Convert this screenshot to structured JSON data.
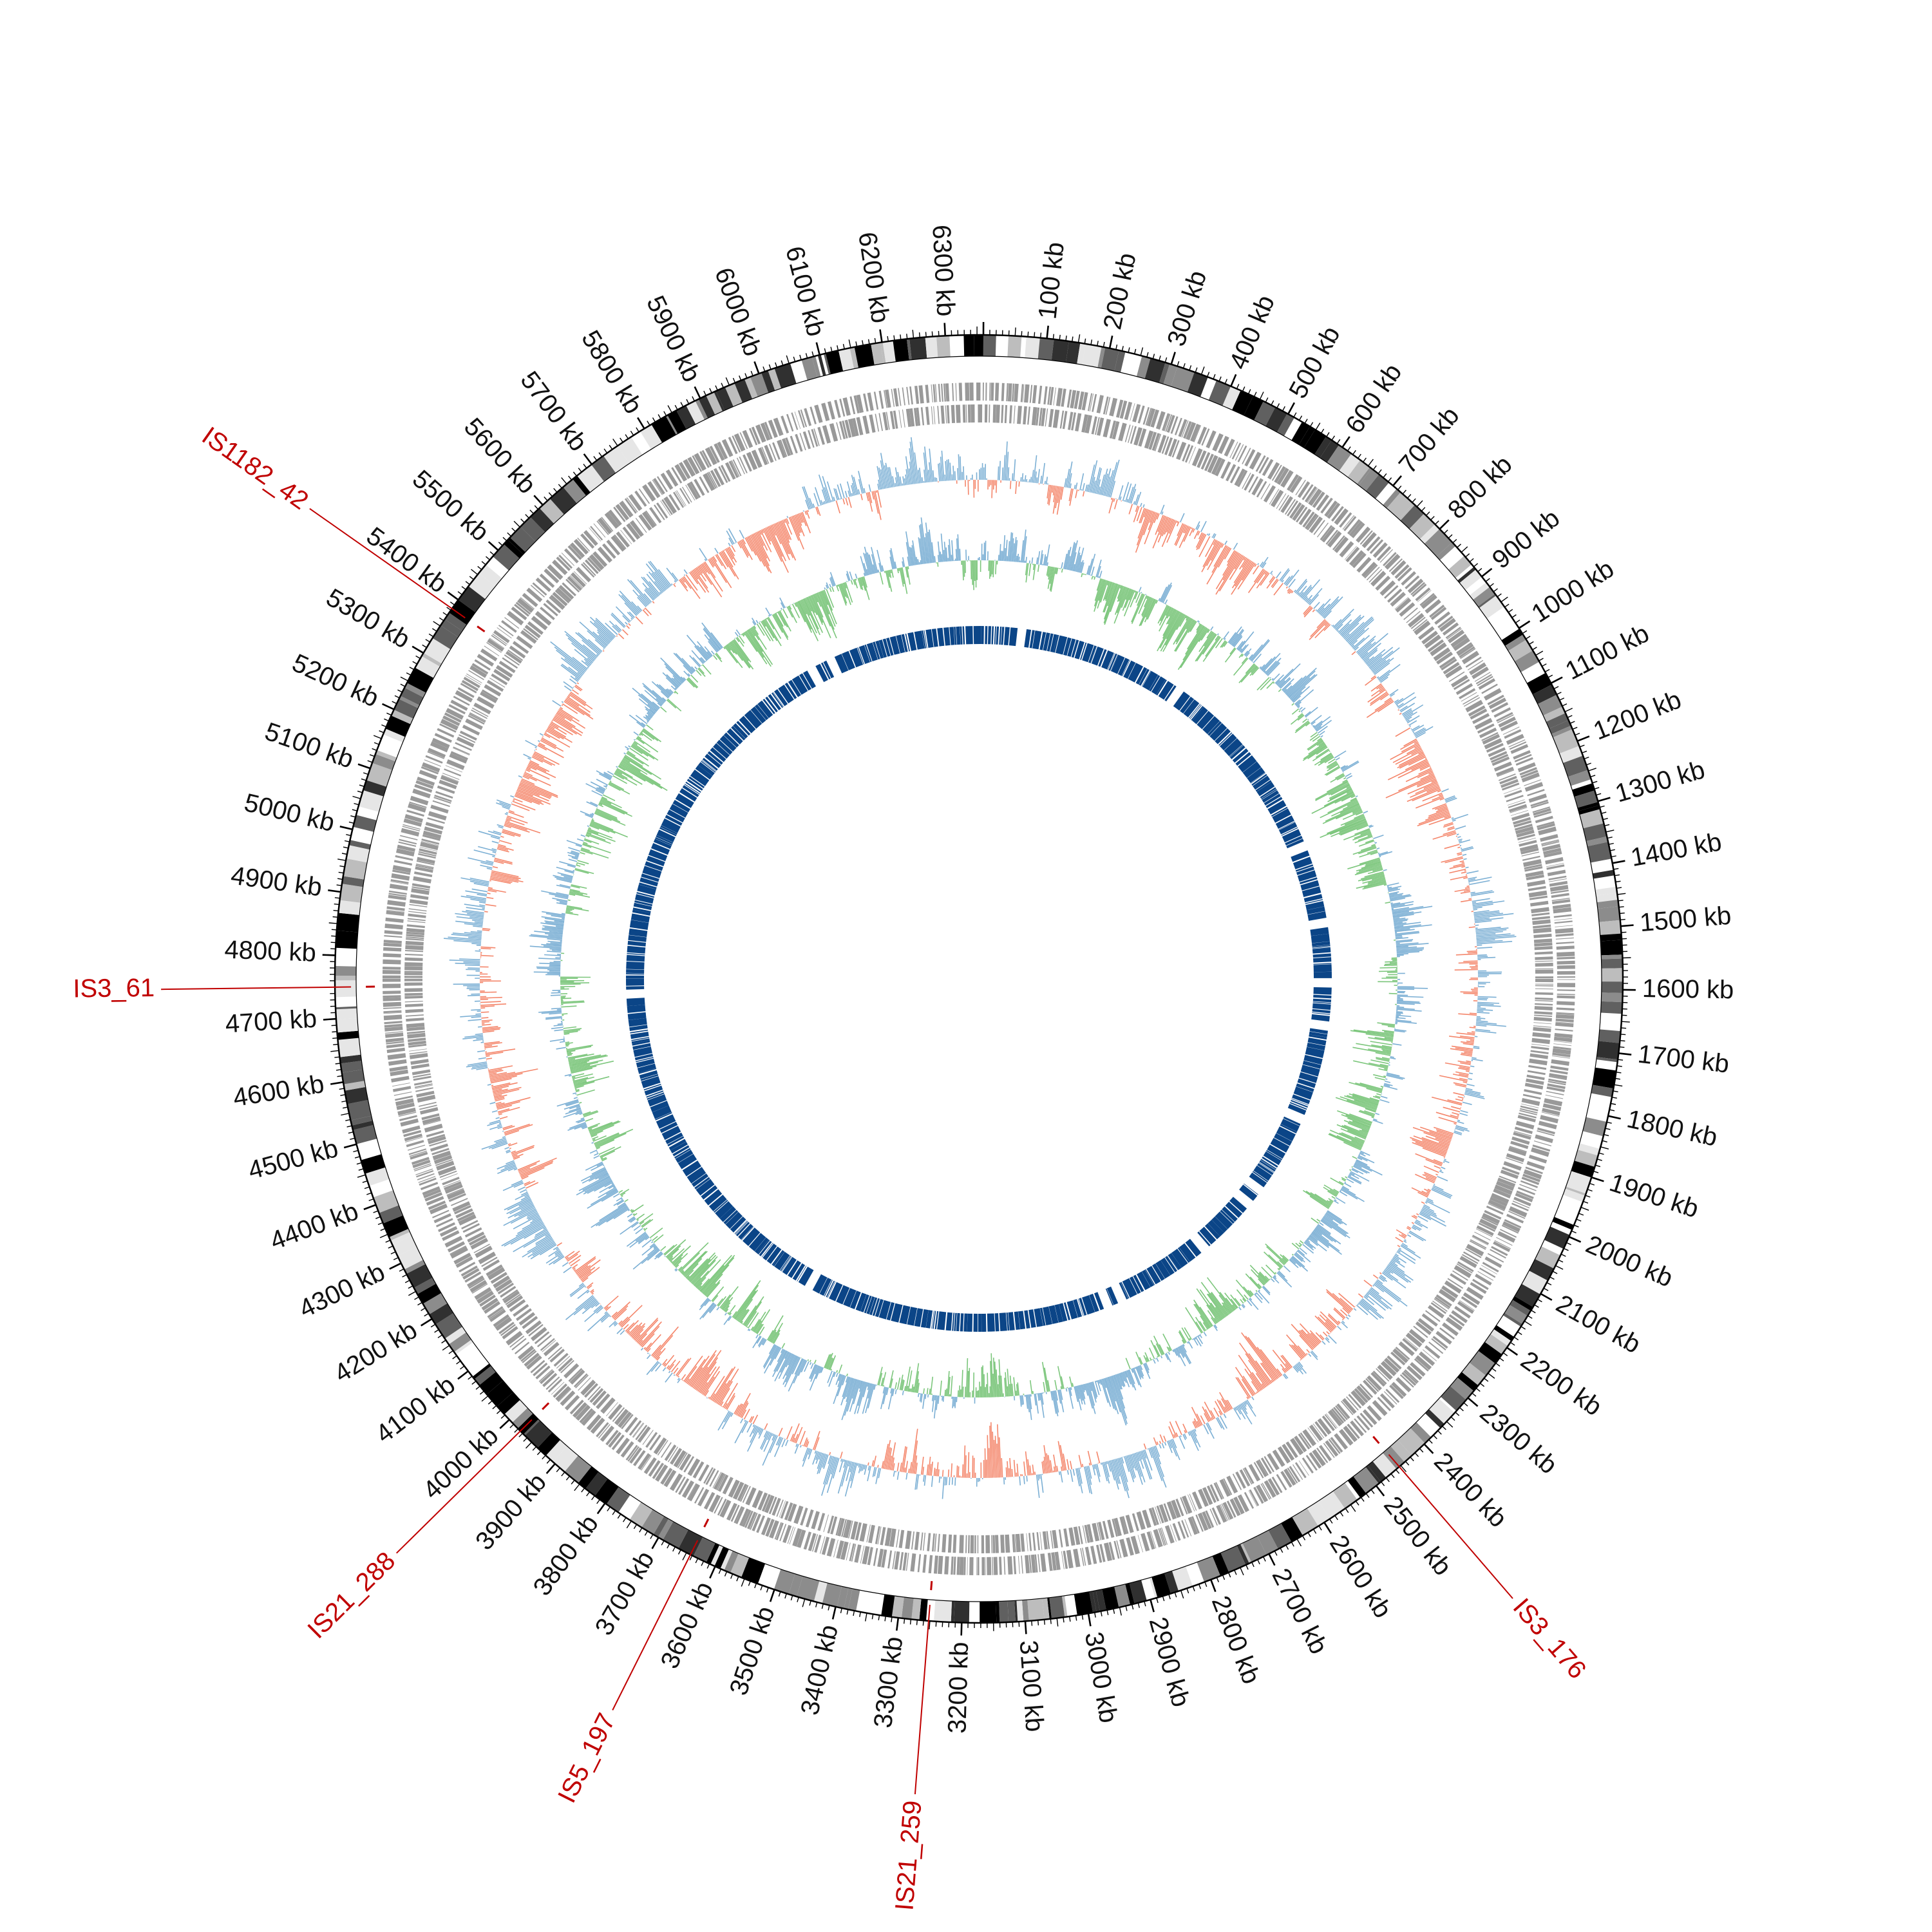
{
  "genome": {
    "total_kb": 6360,
    "tick_unit": "kb",
    "tick_step_kb": 100
  },
  "tick_labels": [
    "100 kb",
    "200 kb",
    "300 kb",
    "400 kb",
    "500 kb",
    "600 kb",
    "700 kb",
    "800 kb",
    "900 kb",
    "1000 kb",
    "1100 kb",
    "1200 kb",
    "1300 kb",
    "1400 kb",
    "1500 kb",
    "1600 kb",
    "1700 kb",
    "1800 kb",
    "1900 kb",
    "2000 kb",
    "2100 kb",
    "2200 kb",
    "2300 kb",
    "2400 kb",
    "2500 kb",
    "2600 kb",
    "2700 kb",
    "2800 kb",
    "2900 kb",
    "3000 kb",
    "3100 kb",
    "3200 kb",
    "3300 kb",
    "3400 kb",
    "3500 kb",
    "3600 kb",
    "3700 kb",
    "3800 kb",
    "3900 kb",
    "4000 kb",
    "4100 kb",
    "4200 kb",
    "4300 kb",
    "4400 kb",
    "4500 kb",
    "4600 kb",
    "4700 kb",
    "4800 kb",
    "4900 kb",
    "5000 kb",
    "5100 kb",
    "5200 kb",
    "5300 kb",
    "5400 kb",
    "5500 kb",
    "5600 kb",
    "5700 kb",
    "5800 kb",
    "5900 kb",
    "6000 kb",
    "6100 kb",
    "6200 kb",
    "6300 kb"
  ],
  "is_elements": [
    {
      "name": "IS1182_42",
      "position_kb": 5383
    },
    {
      "name": "IS3_61",
      "position_kb": 4750
    },
    {
      "name": "IS21_288",
      "position_kb": 3975
    },
    {
      "name": "IS5_197",
      "position_kb": 3643
    },
    {
      "name": "IS21_259",
      "position_kb": 3252
    },
    {
      "name": "IS3_176",
      "position_kb": 2453
    }
  ],
  "tracks": [
    {
      "name": "karyotype",
      "color": "#000000"
    },
    {
      "name": "genes-forward-reverse",
      "color": "#999999"
    },
    {
      "name": "signal-positive",
      "color": "#7bafd4"
    },
    {
      "name": "signal-negative",
      "color": "#f4866b"
    },
    {
      "name": "gc-skew",
      "color": "#7cc67c"
    },
    {
      "name": "feature-blocks",
      "color": "#0b4587"
    }
  ],
  "colors": {
    "is_label": "#c00000",
    "tick_label": "#111111",
    "karyo_palette": [
      "#000000",
      "#303030",
      "#606060",
      "#8c8c8c",
      "#bdbdbd",
      "#e6e6e6",
      "#ffffff"
    ]
  }
}
